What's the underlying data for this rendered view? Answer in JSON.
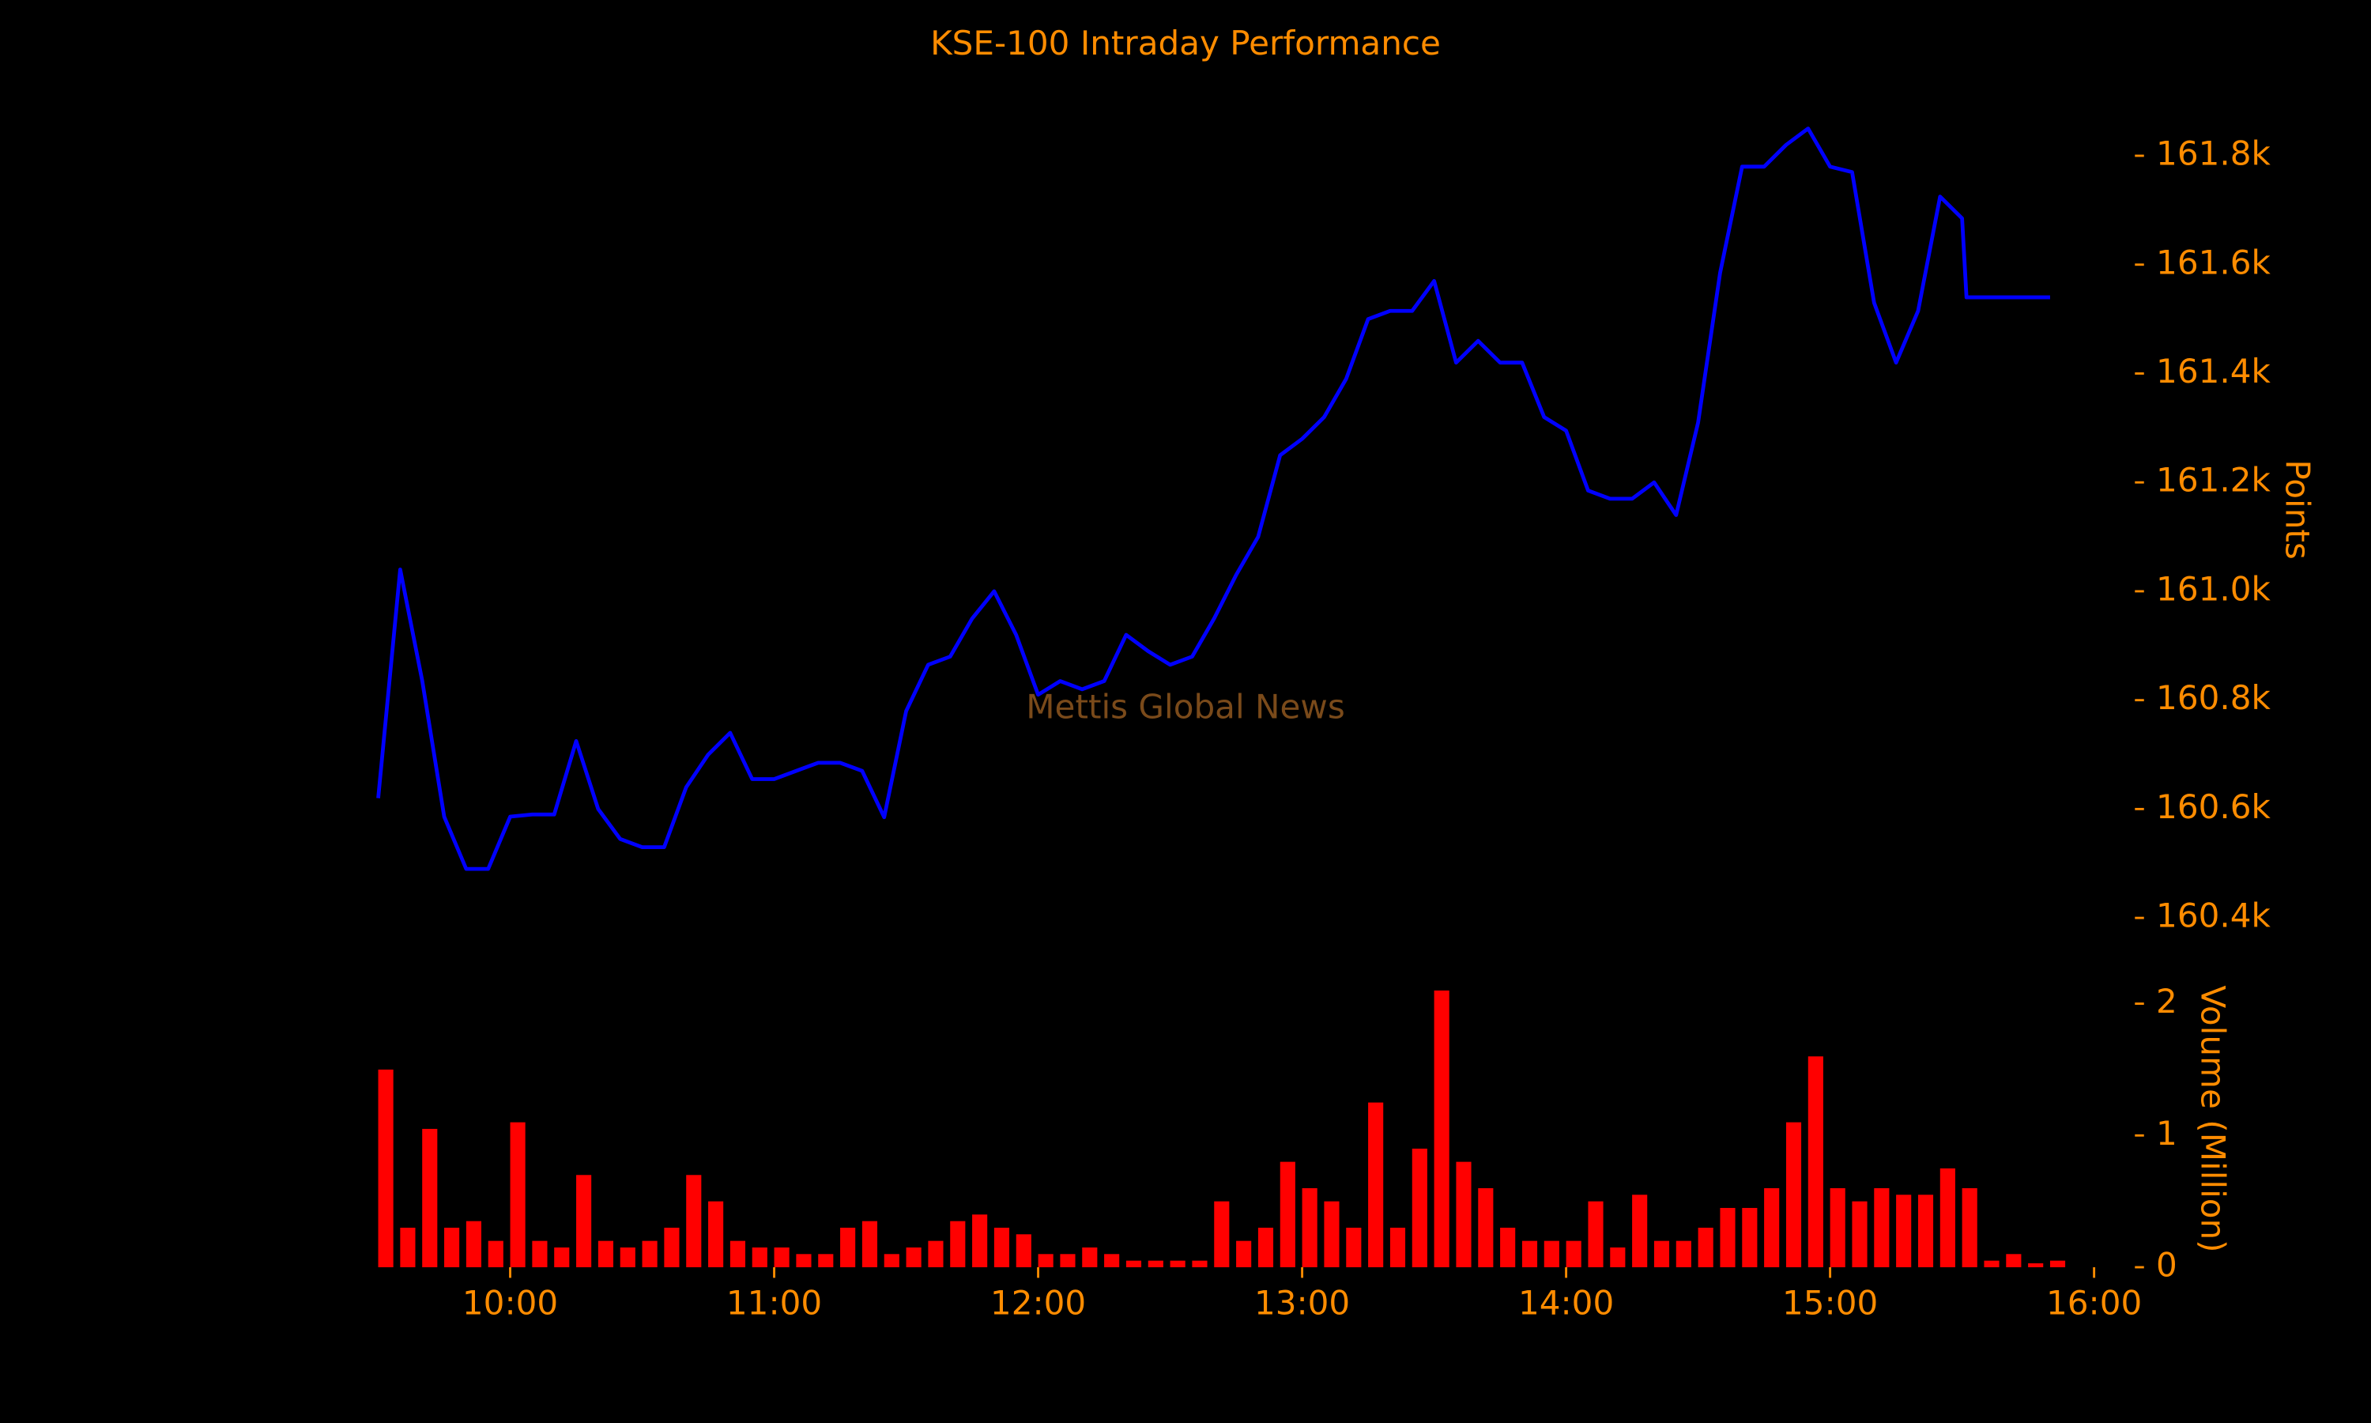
{
  "chart_data": [
    {
      "type": "line",
      "title": "KSE-100 Intraday Performance",
      "annotation": "Mettis Global News",
      "ylabel": "Points",
      "color": "#0000ff",
      "x": [
        "09:30",
        "09:35",
        "09:40",
        "09:45",
        "09:50",
        "09:55",
        "10:00",
        "10:05",
        "10:10",
        "10:15",
        "10:20",
        "10:25",
        "10:30",
        "10:35",
        "10:40",
        "10:45",
        "10:50",
        "10:55",
        "11:00",
        "11:05",
        "11:10",
        "11:15",
        "11:20",
        "11:25",
        "11:30",
        "11:35",
        "11:40",
        "11:45",
        "11:50",
        "11:55",
        "12:00",
        "12:05",
        "12:10",
        "12:15",
        "12:20",
        "12:25",
        "12:30",
        "12:35",
        "12:40",
        "12:45",
        "12:50",
        "12:55",
        "13:00",
        "13:05",
        "13:10",
        "13:15",
        "13:20",
        "13:25",
        "13:30",
        "13:35",
        "13:40",
        "13:45",
        "13:50",
        "13:55",
        "14:00",
        "14:05",
        "14:10",
        "14:15",
        "14:20",
        "14:25",
        "14:30",
        "14:35",
        "14:40",
        "14:45",
        "14:50",
        "14:55",
        "15:00",
        "15:05",
        "15:10",
        "15:15",
        "15:20",
        "15:25",
        "15:30",
        "15:31",
        "15:50"
      ],
      "values": [
        160620,
        161040,
        160836,
        160586,
        160490,
        160490,
        160586,
        160590,
        160590,
        160725,
        160600,
        160545,
        160530,
        160530,
        160640,
        160700,
        160740,
        160655,
        160655,
        160670,
        160685,
        160685,
        160670,
        160585,
        160780,
        160865,
        160880,
        160950,
        161000,
        160920,
        160810,
        160835,
        160820,
        160835,
        160920,
        160890,
        160865,
        160880,
        160950,
        161030,
        161100,
        161250,
        161280,
        161320,
        161390,
        161500,
        161515,
        161515,
        161570,
        161420,
        161460,
        161420,
        161420,
        161320,
        161295,
        161185,
        161170,
        161170,
        161200,
        161140,
        161310,
        161585,
        161780,
        161780,
        161820,
        161850,
        161780,
        161770,
        161530,
        161420,
        161515,
        161725,
        161685,
        161540,
        161540
      ],
      "xlim": [
        "09:30",
        "16:00"
      ],
      "ylim": [
        160300,
        161900
      ],
      "yticks": [
        {
          "value": 160400,
          "label": "160.4k"
        },
        {
          "value": 160600,
          "label": "160.6k"
        },
        {
          "value": 160800,
          "label": "160.8k"
        },
        {
          "value": 161000,
          "label": "161.0k"
        },
        {
          "value": 161200,
          "label": "161.2k"
        },
        {
          "value": 161400,
          "label": "161.4k"
        },
        {
          "value": 161600,
          "label": "161.6k"
        },
        {
          "value": 161800,
          "label": "161.8k"
        }
      ]
    },
    {
      "type": "bar",
      "ylabel": "Volume (Million)",
      "color": "#ff0000",
      "x": [
        "09:30",
        "09:35",
        "09:40",
        "09:45",
        "09:50",
        "09:55",
        "10:00",
        "10:05",
        "10:10",
        "10:15",
        "10:20",
        "10:25",
        "10:30",
        "10:35",
        "10:40",
        "10:45",
        "10:50",
        "10:55",
        "11:00",
        "11:05",
        "11:10",
        "11:15",
        "11:20",
        "11:25",
        "11:30",
        "11:35",
        "11:40",
        "11:45",
        "11:50",
        "11:55",
        "12:00",
        "12:05",
        "12:10",
        "12:15",
        "12:20",
        "12:25",
        "12:30",
        "12:35",
        "12:40",
        "12:45",
        "12:50",
        "12:55",
        "13:00",
        "13:05",
        "13:10",
        "13:15",
        "13:20",
        "13:25",
        "13:30",
        "13:35",
        "13:40",
        "13:45",
        "13:50",
        "13:55",
        "14:00",
        "14:05",
        "14:10",
        "14:15",
        "14:20",
        "14:25",
        "14:30",
        "14:35",
        "14:40",
        "14:45",
        "14:50",
        "14:55",
        "15:00",
        "15:05",
        "15:10",
        "15:15",
        "15:20",
        "15:25",
        "15:30",
        "15:35",
        "15:40",
        "15:45",
        "15:50"
      ],
      "values": [
        1.5,
        0.3,
        1.05,
        0.3,
        0.35,
        0.2,
        1.1,
        0.2,
        0.15,
        0.7,
        0.2,
        0.15,
        0.2,
        0.3,
        0.7,
        0.5,
        0.2,
        0.15,
        0.15,
        0.1,
        0.1,
        0.3,
        0.35,
        0.1,
        0.15,
        0.2,
        0.35,
        0.4,
        0.3,
        0.25,
        0.1,
        0.1,
        0.15,
        0.1,
        0.05,
        0.05,
        0.05,
        0.05,
        0.5,
        0.2,
        0.3,
        0.8,
        0.6,
        0.5,
        0.3,
        1.25,
        0.3,
        0.9,
        2.1,
        0.8,
        0.6,
        0.3,
        0.2,
        0.2,
        0.2,
        0.5,
        0.15,
        0.55,
        0.2,
        0.2,
        0.3,
        0.45,
        0.45,
        0.6,
        1.1,
        1.6,
        0.6,
        0.5,
        0.6,
        0.55,
        0.55,
        0.75,
        0.6,
        0.05,
        0.1,
        0.03,
        0.05
      ],
      "xlim": [
        "09:30",
        "16:00"
      ],
      "xticks": [
        "10:00",
        "11:00",
        "12:00",
        "13:00",
        "14:00",
        "15:00",
        "16:00"
      ],
      "ylim": [
        0,
        2.1
      ],
      "yticks": [
        0,
        1,
        2
      ]
    }
  ]
}
